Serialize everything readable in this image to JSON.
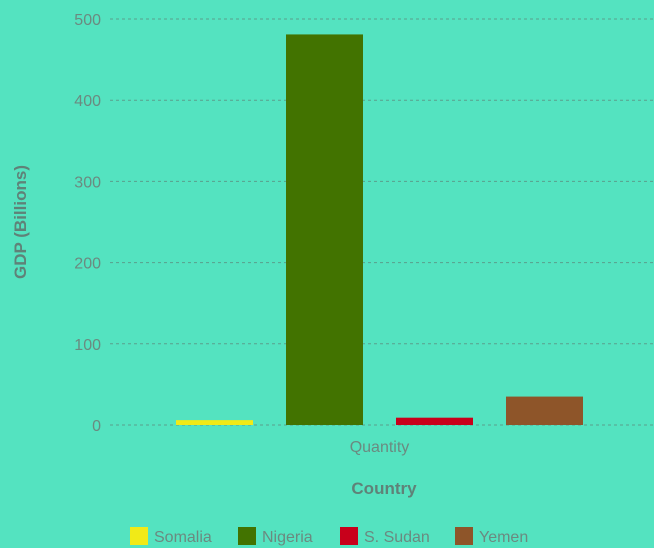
{
  "chart_data": {
    "type": "bar",
    "categories": [
      "Quantity"
    ],
    "series": [
      {
        "name": "Somalia",
        "values": [
          6
        ],
        "color": "#f1ea17"
      },
      {
        "name": "Nigeria",
        "values": [
          481
        ],
        "color": "#427300"
      },
      {
        "name": "S. Sudan",
        "values": [
          9
        ],
        "color": "#c8001b"
      },
      {
        "name": "Yemen",
        "values": [
          35
        ],
        "color": "#8e5529"
      }
    ],
    "title": "",
    "xlabel": "Country",
    "ylabel": "GDP (Billions)",
    "ylim": [
      0,
      500
    ],
    "yticks": [
      0,
      100,
      200,
      300,
      400,
      500
    ],
    "grid": true,
    "legend_position": "bottom"
  }
}
